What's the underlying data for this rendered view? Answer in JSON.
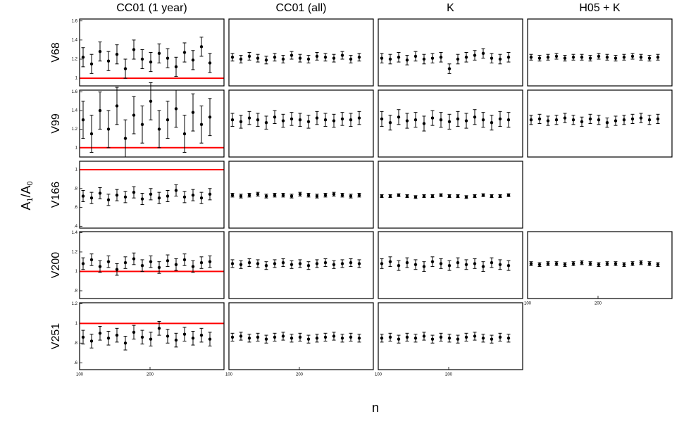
{
  "column_titles": [
    "CC01 (1 year)",
    "CC01 (all)",
    "K",
    "H05 + K"
  ],
  "row_labels": [
    "V68",
    "V99",
    "V166",
    "V200",
    "V251"
  ],
  "y_label_parts": [
    "A",
    "1",
    "/A",
    "0"
  ],
  "x_label": "n",
  "chart_data": [
    {
      "type": "scatter",
      "color": "#000000",
      "xlim": [
        100,
        305
      ],
      "ylim": [
        0.92,
        1.62
      ],
      "yticks": [
        1,
        1.2,
        1.4,
        1.6
      ],
      "hline": 1,
      "hline_color": "#ff0000",
      "x": [
        105,
        117,
        129,
        141,
        153,
        165,
        177,
        189,
        201,
        213,
        225,
        237,
        249,
        261,
        273,
        285
      ],
      "values": [
        1.22,
        1.15,
        1.28,
        1.18,
        1.25,
        1.1,
        1.3,
        1.2,
        1.17,
        1.26,
        1.21,
        1.12,
        1.27,
        1.19,
        1.33,
        1.16
      ],
      "errors": [
        0.1,
        0.1,
        0.1,
        0.1,
        0.1,
        0.1,
        0.1,
        0.1,
        0.1,
        0.1,
        0.1,
        0.1,
        0.1,
        0.1,
        0.1,
        0.1
      ]
    },
    {
      "type": "scatter",
      "color": "#000000",
      "xlim": [
        100,
        305
      ],
      "ylim": [
        0.92,
        1.62
      ],
      "x": [
        105,
        117,
        129,
        141,
        153,
        165,
        177,
        189,
        201,
        213,
        225,
        237,
        249,
        261,
        273,
        285
      ],
      "values": [
        1.22,
        1.2,
        1.23,
        1.21,
        1.19,
        1.22,
        1.2,
        1.24,
        1.21,
        1.2,
        1.23,
        1.22,
        1.21,
        1.24,
        1.2,
        1.22
      ],
      "errors": [
        0.04,
        0.04,
        0.04,
        0.04,
        0.04,
        0.04,
        0.04,
        0.04,
        0.04,
        0.04,
        0.04,
        0.04,
        0.04,
        0.04,
        0.04,
        0.04
      ]
    },
    {
      "type": "scatter",
      "color": "#000000",
      "xlim": [
        100,
        305
      ],
      "ylim": [
        0.92,
        1.62
      ],
      "x": [
        105,
        117,
        129,
        141,
        153,
        165,
        177,
        189,
        201,
        213,
        225,
        237,
        249,
        261,
        273,
        285
      ],
      "values": [
        1.21,
        1.2,
        1.22,
        1.19,
        1.23,
        1.2,
        1.21,
        1.22,
        1.1,
        1.2,
        1.22,
        1.24,
        1.26,
        1.21,
        1.2,
        1.22
      ],
      "errors": [
        0.05,
        0.05,
        0.05,
        0.05,
        0.05,
        0.05,
        0.05,
        0.05,
        0.05,
        0.05,
        0.05,
        0.05,
        0.05,
        0.05,
        0.05,
        0.05
      ]
    },
    {
      "type": "scatter",
      "color": "#000000",
      "xlim": [
        100,
        305
      ],
      "ylim": [
        0.92,
        1.62
      ],
      "x": [
        105,
        117,
        129,
        141,
        153,
        165,
        177,
        189,
        201,
        213,
        225,
        237,
        249,
        261,
        273,
        285
      ],
      "values": [
        1.22,
        1.21,
        1.22,
        1.23,
        1.21,
        1.22,
        1.22,
        1.21,
        1.23,
        1.22,
        1.21,
        1.22,
        1.23,
        1.22,
        1.21,
        1.22
      ],
      "errors": [
        0.03,
        0.03,
        0.03,
        0.03,
        0.03,
        0.03,
        0.03,
        0.03,
        0.03,
        0.03,
        0.03,
        0.03,
        0.03,
        0.03,
        0.03,
        0.03
      ]
    },
    {
      "type": "scatter",
      "color": "#000000",
      "xlim": [
        100,
        305
      ],
      "ylim": [
        0.9,
        1.62
      ],
      "yticks": [
        1,
        1.2,
        1.4,
        1.6
      ],
      "hline": 1,
      "hline_color": "#ff0000",
      "x": [
        105,
        117,
        129,
        141,
        153,
        165,
        177,
        189,
        201,
        213,
        225,
        237,
        249,
        261,
        273,
        285
      ],
      "values": [
        1.3,
        1.15,
        1.4,
        1.2,
        1.45,
        1.1,
        1.35,
        1.25,
        1.5,
        1.2,
        1.3,
        1.42,
        1.15,
        1.38,
        1.25,
        1.33
      ],
      "errors": [
        0.2,
        0.2,
        0.2,
        0.2,
        0.2,
        0.2,
        0.2,
        0.2,
        0.2,
        0.2,
        0.2,
        0.2,
        0.2,
        0.2,
        0.2,
        0.2
      ]
    },
    {
      "type": "scatter",
      "color": "#000000",
      "xlim": [
        100,
        305
      ],
      "ylim": [
        0.9,
        1.62
      ],
      "x": [
        105,
        117,
        129,
        141,
        153,
        165,
        177,
        189,
        201,
        213,
        225,
        237,
        249,
        261,
        273,
        285
      ],
      "values": [
        1.3,
        1.28,
        1.32,
        1.3,
        1.27,
        1.33,
        1.29,
        1.31,
        1.3,
        1.28,
        1.32,
        1.3,
        1.29,
        1.31,
        1.3,
        1.32
      ],
      "errors": [
        0.07,
        0.07,
        0.07,
        0.07,
        0.07,
        0.07,
        0.07,
        0.07,
        0.07,
        0.07,
        0.07,
        0.07,
        0.07,
        0.07,
        0.07,
        0.07
      ]
    },
    {
      "type": "scatter",
      "color": "#000000",
      "xlim": [
        100,
        305
      ],
      "ylim": [
        0.9,
        1.62
      ],
      "x": [
        105,
        117,
        129,
        141,
        153,
        165,
        177,
        189,
        201,
        213,
        225,
        237,
        249,
        261,
        273,
        285
      ],
      "values": [
        1.31,
        1.27,
        1.33,
        1.29,
        1.3,
        1.26,
        1.32,
        1.3,
        1.28,
        1.31,
        1.29,
        1.33,
        1.3,
        1.27,
        1.31,
        1.3
      ],
      "errors": [
        0.08,
        0.08,
        0.08,
        0.08,
        0.08,
        0.08,
        0.08,
        0.08,
        0.08,
        0.08,
        0.08,
        0.08,
        0.08,
        0.08,
        0.08,
        0.08
      ]
    },
    {
      "type": "scatter",
      "color": "#000000",
      "xlim": [
        100,
        305
      ],
      "ylim": [
        0.9,
        1.62
      ],
      "x": [
        105,
        117,
        129,
        141,
        153,
        165,
        177,
        189,
        201,
        213,
        225,
        237,
        249,
        261,
        273,
        285
      ],
      "values": [
        1.3,
        1.31,
        1.29,
        1.3,
        1.32,
        1.3,
        1.28,
        1.31,
        1.3,
        1.27,
        1.29,
        1.3,
        1.31,
        1.32,
        1.3,
        1.31
      ],
      "errors": [
        0.05,
        0.05,
        0.05,
        0.05,
        0.05,
        0.05,
        0.05,
        0.05,
        0.05,
        0.05,
        0.05,
        0.05,
        0.05,
        0.05,
        0.05,
        0.05
      ]
    },
    {
      "type": "scatter",
      "color": "#000000",
      "xlim": [
        100,
        305
      ],
      "ylim": [
        0.38,
        1.09
      ],
      "yticks": [
        {
          "value": 0.4,
          "label": ".4"
        },
        {
          "value": 0.6,
          "label": ".6"
        },
        {
          "value": 0.8,
          "label": ".8"
        },
        1
      ],
      "hline": 1,
      "hline_color": "#ff0000",
      "x": [
        105,
        117,
        129,
        141,
        153,
        165,
        177,
        189,
        201,
        213,
        225,
        237,
        249,
        261,
        273,
        285
      ],
      "values": [
        0.72,
        0.7,
        0.75,
        0.68,
        0.73,
        0.71,
        0.76,
        0.69,
        0.74,
        0.7,
        0.72,
        0.78,
        0.71,
        0.73,
        0.7,
        0.74
      ],
      "errors": [
        0.06,
        0.06,
        0.06,
        0.06,
        0.06,
        0.06,
        0.06,
        0.06,
        0.06,
        0.06,
        0.06,
        0.06,
        0.06,
        0.06,
        0.06,
        0.06
      ]
    },
    {
      "type": "scatter",
      "color": "#000000",
      "xlim": [
        100,
        305
      ],
      "ylim": [
        0.38,
        1.09
      ],
      "x": [
        105,
        117,
        129,
        141,
        153,
        165,
        177,
        189,
        201,
        213,
        225,
        237,
        249,
        261,
        273,
        285
      ],
      "values": [
        0.73,
        0.72,
        0.73,
        0.74,
        0.72,
        0.73,
        0.73,
        0.72,
        0.74,
        0.73,
        0.72,
        0.73,
        0.74,
        0.73,
        0.72,
        0.73
      ],
      "errors": [
        0.02,
        0.02,
        0.02,
        0.02,
        0.02,
        0.02,
        0.02,
        0.02,
        0.02,
        0.02,
        0.02,
        0.02,
        0.02,
        0.02,
        0.02,
        0.02
      ]
    },
    {
      "type": "scatter",
      "color": "#000000",
      "xlim": [
        100,
        305
      ],
      "ylim": [
        0.38,
        1.09
      ],
      "x": [
        105,
        117,
        129,
        141,
        153,
        165,
        177,
        189,
        201,
        213,
        225,
        237,
        249,
        261,
        273,
        285
      ],
      "values": [
        0.72,
        0.72,
        0.73,
        0.72,
        0.71,
        0.72,
        0.72,
        0.73,
        0.72,
        0.72,
        0.71,
        0.72,
        0.73,
        0.72,
        0.72,
        0.73
      ],
      "errors": [
        0.015,
        0.015,
        0.015,
        0.015,
        0.015,
        0.015,
        0.015,
        0.015,
        0.015,
        0.015,
        0.015,
        0.015,
        0.015,
        0.015,
        0.015,
        0.015
      ]
    },
    {
      "type": "scatter",
      "color": "#000000",
      "xlim": [
        100,
        305
      ],
      "ylim": [
        0.72,
        1.41
      ],
      "yticks": [
        {
          "value": 0.8,
          "label": ".8"
        },
        1,
        1.2,
        1.4
      ],
      "hline": 1,
      "hline_color": "#ff0000",
      "x": [
        105,
        117,
        129,
        141,
        153,
        165,
        177,
        189,
        201,
        213,
        225,
        237,
        249,
        261,
        273,
        285
      ],
      "values": [
        1.08,
        1.12,
        1.05,
        1.1,
        1.02,
        1.09,
        1.13,
        1.06,
        1.1,
        1.04,
        1.11,
        1.07,
        1.12,
        1.05,
        1.09,
        1.1
      ],
      "errors": [
        0.06,
        0.06,
        0.06,
        0.06,
        0.06,
        0.06,
        0.06,
        0.06,
        0.06,
        0.06,
        0.06,
        0.06,
        0.06,
        0.06,
        0.06,
        0.06
      ]
    },
    {
      "type": "scatter",
      "color": "#000000",
      "xlim": [
        100,
        305
      ],
      "ylim": [
        0.72,
        1.41
      ],
      "x": [
        105,
        117,
        129,
        141,
        153,
        165,
        177,
        189,
        201,
        213,
        225,
        237,
        249,
        261,
        273,
        285
      ],
      "values": [
        1.08,
        1.07,
        1.09,
        1.08,
        1.06,
        1.08,
        1.09,
        1.07,
        1.08,
        1.06,
        1.08,
        1.09,
        1.07,
        1.08,
        1.09,
        1.08
      ],
      "errors": [
        0.04,
        0.04,
        0.04,
        0.04,
        0.04,
        0.04,
        0.04,
        0.04,
        0.04,
        0.04,
        0.04,
        0.04,
        0.04,
        0.04,
        0.04,
        0.04
      ]
    },
    {
      "type": "scatter",
      "color": "#000000",
      "xlim": [
        100,
        305
      ],
      "ylim": [
        0.72,
        1.41
      ],
      "x": [
        105,
        117,
        129,
        141,
        153,
        165,
        177,
        189,
        201,
        213,
        225,
        237,
        249,
        261,
        273,
        285
      ],
      "values": [
        1.08,
        1.1,
        1.06,
        1.09,
        1.07,
        1.05,
        1.1,
        1.08,
        1.06,
        1.09,
        1.07,
        1.08,
        1.05,
        1.09,
        1.07,
        1.06
      ],
      "errors": [
        0.05,
        0.05,
        0.05,
        0.05,
        0.05,
        0.05,
        0.05,
        0.05,
        0.05,
        0.05,
        0.05,
        0.05,
        0.05,
        0.05,
        0.05,
        0.05
      ]
    },
    {
      "type": "scatter",
      "color": "#000000",
      "xlim": [
        100,
        305
      ],
      "ylim": [
        0.72,
        1.41
      ],
      "xticks": [
        100,
        200
      ],
      "x": [
        105,
        117,
        129,
        141,
        153,
        165,
        177,
        189,
        201,
        213,
        225,
        237,
        249,
        261,
        273,
        285
      ],
      "values": [
        1.08,
        1.07,
        1.08,
        1.08,
        1.07,
        1.08,
        1.09,
        1.08,
        1.07,
        1.08,
        1.08,
        1.07,
        1.08,
        1.09,
        1.08,
        1.07
      ],
      "errors": [
        0.02,
        0.02,
        0.02,
        0.02,
        0.02,
        0.02,
        0.02,
        0.02,
        0.02,
        0.02,
        0.02,
        0.02,
        0.02,
        0.02,
        0.02,
        0.02
      ]
    },
    {
      "type": "scatter",
      "color": "#000000",
      "xlim": [
        100,
        305
      ],
      "ylim": [
        0.53,
        1.21
      ],
      "yticks": [
        {
          "value": 0.6,
          "label": ".6"
        },
        {
          "value": 0.8,
          "label": ".8"
        },
        1,
        1.2
      ],
      "xticks": [
        100,
        200
      ],
      "hline": 1,
      "hline_color": "#ff0000",
      "x": [
        105,
        117,
        129,
        141,
        153,
        165,
        177,
        189,
        201,
        213,
        225,
        237,
        249,
        261,
        273,
        285
      ],
      "values": [
        0.86,
        0.82,
        0.9,
        0.85,
        0.88,
        0.8,
        0.91,
        0.86,
        0.84,
        0.95,
        0.87,
        0.83,
        0.89,
        0.85,
        0.88,
        0.84
      ],
      "errors": [
        0.07,
        0.07,
        0.07,
        0.07,
        0.07,
        0.07,
        0.07,
        0.07,
        0.07,
        0.07,
        0.07,
        0.07,
        0.07,
        0.07,
        0.07,
        0.07
      ]
    },
    {
      "type": "scatter",
      "color": "#000000",
      "xlim": [
        100,
        305
      ],
      "ylim": [
        0.53,
        1.21
      ],
      "xticks": [
        100,
        200
      ],
      "x": [
        105,
        117,
        129,
        141,
        153,
        165,
        177,
        189,
        201,
        213,
        225,
        237,
        249,
        261,
        273,
        285
      ],
      "values": [
        0.86,
        0.87,
        0.85,
        0.86,
        0.84,
        0.86,
        0.87,
        0.85,
        0.86,
        0.84,
        0.85,
        0.86,
        0.87,
        0.85,
        0.86,
        0.85
      ],
      "errors": [
        0.04,
        0.04,
        0.04,
        0.04,
        0.04,
        0.04,
        0.04,
        0.04,
        0.04,
        0.04,
        0.04,
        0.04,
        0.04,
        0.04,
        0.04,
        0.04
      ]
    },
    {
      "type": "scatter",
      "color": "#000000",
      "xlim": [
        100,
        305
      ],
      "ylim": [
        0.53,
        1.21
      ],
      "xticks": [
        100,
        200
      ],
      "x": [
        105,
        117,
        129,
        141,
        153,
        165,
        177,
        189,
        201,
        213,
        225,
        237,
        249,
        261,
        273,
        285
      ],
      "values": [
        0.85,
        0.86,
        0.84,
        0.86,
        0.85,
        0.87,
        0.84,
        0.86,
        0.85,
        0.84,
        0.86,
        0.87,
        0.85,
        0.84,
        0.86,
        0.85
      ],
      "errors": [
        0.04,
        0.04,
        0.04,
        0.04,
        0.04,
        0.04,
        0.04,
        0.04,
        0.04,
        0.04,
        0.04,
        0.04,
        0.04,
        0.04,
        0.04,
        0.04
      ]
    }
  ]
}
